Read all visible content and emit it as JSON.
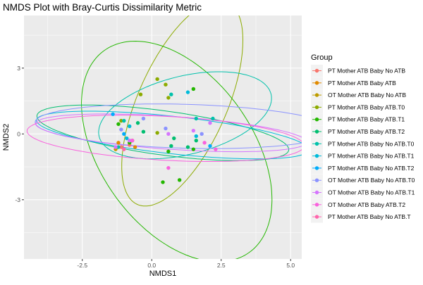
{
  "chart_data": {
    "type": "scatter",
    "title": "NMDS Plot with Bray-Curtis Dissimilarity Metric",
    "xlabel": "NMDS1",
    "ylabel": "NMDS2",
    "xlim": [
      -4.6,
      5.4
    ],
    "ylim": [
      -5.7,
      5.4
    ],
    "x_ticks": [
      -2.5,
      0,
      2.5,
      5
    ],
    "x_tick_labels": [
      "-2.5",
      "0.0",
      "2.5",
      "5.0"
    ],
    "y_ticks": [
      -3,
      0,
      3
    ],
    "y_tick_labels": [
      "-3",
      "0",
      "3"
    ],
    "grid": true,
    "legend_title": "Group",
    "legend_position": "right",
    "series": [
      {
        "name": "PT Mother ATB Baby No ATB",
        "color": "#F8766D",
        "points": [
          [
            -0.8,
            -0.5
          ],
          [
            -1.1,
            -0.6
          ]
        ],
        "ellipse": null
      },
      {
        "name": "PT Mother ATB Baby ATB",
        "color": "#E18A00",
        "points": [
          [
            -0.6,
            -0.6
          ],
          [
            -1.2,
            -0.4
          ]
        ],
        "ellipse": null
      },
      {
        "name": "OT Mother ATB Baby No ATB",
        "color": "#BE9C00",
        "points": [
          [
            -0.7,
            -0.3
          ],
          [
            -1.3,
            -0.7
          ]
        ],
        "ellipse": null
      },
      {
        "name": "PT Mother ATB Baby ATB.T0",
        "color": "#8CAB00",
        "points": [
          [
            -0.4,
            1.8
          ],
          [
            0.2,
            2.5
          ],
          [
            0.5,
            2.25
          ],
          [
            0.6,
            1.65
          ],
          [
            0.2,
            0.05
          ],
          [
            -1.1,
            0.6
          ]
        ],
        "ellipse": {
          "cx": 1.1,
          "cy": 1.4,
          "rx": 4.9,
          "ry": 1.65,
          "angle": 72
        }
      },
      {
        "name": "PT Mother ATB Baby ATB.T1",
        "color": "#24B700",
        "points": [
          [
            1.5,
            2.05
          ],
          [
            0.4,
            -2.2
          ],
          [
            1.0,
            -2.1
          ],
          [
            0.6,
            -0.8
          ],
          [
            1.5,
            -0.7
          ],
          [
            -1.2,
            0.45
          ],
          [
            -0.8,
            -0.4
          ]
        ],
        "ellipse": {
          "cx": 0.9,
          "cy": -0.8,
          "rx": 5.35,
          "ry": 2.9,
          "angle": -66
        }
      },
      {
        "name": "PT Mother ATB Baby ATB.T2",
        "color": "#00BE70",
        "points": [
          [
            1.3,
            -0.6
          ],
          [
            0.7,
            -0.55
          ],
          [
            0.8,
            -0.2
          ],
          [
            1.6,
            -0.3
          ],
          [
            -0.3,
            0.1
          ],
          [
            -0.5,
            0.5
          ]
        ],
        "ellipse": {
          "cx": 0.4,
          "cy": 0.05,
          "rx": 4.6,
          "ry": 1.0,
          "angle": -10
        }
      },
      {
        "name": "PT Mother ATB Baby No ATB.T0",
        "color": "#00C1AB",
        "points": [
          [
            0.7,
            1.8
          ],
          [
            1.6,
            0.7
          ],
          [
            2.2,
            0.7
          ],
          [
            -1.0,
            0.6
          ],
          [
            -1.2,
            -0.6
          ]
        ],
        "ellipse": {
          "cx": 1.2,
          "cy": 0.85,
          "rx": 3.25,
          "ry": 1.75,
          "angle": 20
        }
      },
      {
        "name": "PT Mother ATB Baby No ATB.T1",
        "color": "#00BBDA",
        "points": [
          [
            1.3,
            1.9
          ],
          [
            -0.8,
            0.35
          ],
          [
            -0.9,
            -0.2
          ],
          [
            1.6,
            -0.1
          ]
        ],
        "ellipse": {
          "cx": 0.75,
          "cy": -0.05,
          "rx": 4.95,
          "ry": 0.85,
          "angle": -8
        }
      },
      {
        "name": "PT Mother ATB Baby No ATB.T2",
        "color": "#00ACFC",
        "points": [
          [
            2.1,
            -0.55
          ],
          [
            -1.0,
            0.0
          ],
          [
            -1.4,
            0.9
          ]
        ],
        "ellipse": null
      },
      {
        "name": "OT Mother ATB Baby No ATB.T0",
        "color": "#8B93FF",
        "points": [
          [
            -0.3,
            0.7
          ],
          [
            0.5,
            0.25
          ],
          [
            1.8,
            0.0
          ],
          [
            -1.1,
            0.2
          ]
        ],
        "ellipse": {
          "cx": 1.2,
          "cy": 0.35,
          "rx": 5.4,
          "ry": 1.0,
          "angle": -2
        }
      },
      {
        "name": "OT Mother ATB Baby No ATB.T1",
        "color": "#D575FE",
        "points": [
          [
            1.5,
            0.15
          ],
          [
            2.1,
            0.5
          ],
          [
            0.6,
            0.0
          ],
          [
            -0.8,
            -0.3
          ],
          [
            -1.3,
            -0.6
          ]
        ],
        "ellipse": {
          "cx": 0.7,
          "cy": 0.05,
          "rx": 4.9,
          "ry": 0.75,
          "angle": -5
        }
      },
      {
        "name": "OT Mother ATB Baby ATB.T2",
        "color": "#F962DD",
        "points": [
          [
            0.6,
            -1.55
          ],
          [
            1.9,
            -0.4
          ],
          [
            2.3,
            -0.7
          ],
          [
            -0.7,
            -0.3
          ]
        ],
        "ellipse": {
          "cx": 0.5,
          "cy": -0.2,
          "rx": 5.0,
          "ry": 1.0,
          "angle": -4
        }
      },
      {
        "name": "PT Mother ATB Baby No ATB.T",
        "color": "#FF65AC",
        "points": [
          [
            -1.0,
            -0.7
          ]
        ],
        "ellipse": null
      }
    ]
  }
}
